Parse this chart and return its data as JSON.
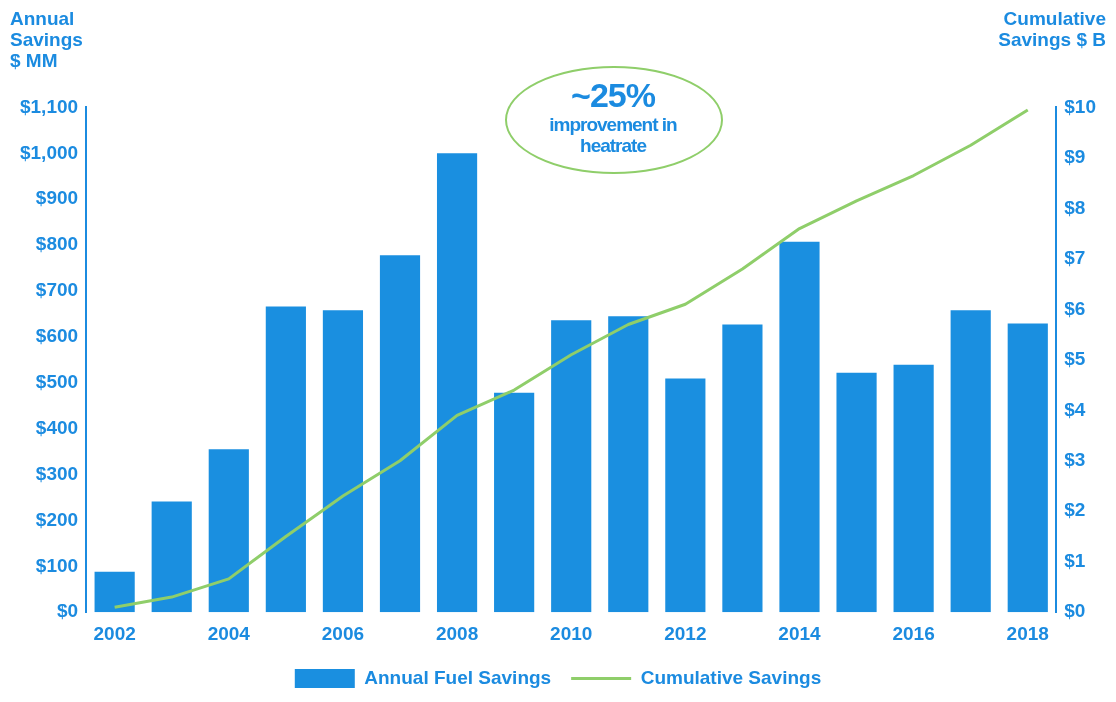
{
  "chart_data": {
    "type": "bar",
    "ylabel": "Annual Savings $ MM",
    "y2label": "Cumulative Savings $ B",
    "categories": [
      "2002",
      null,
      "2004",
      null,
      "2006",
      null,
      "2008",
      null,
      "2010",
      null,
      "2012",
      null,
      "2014",
      null,
      "2016",
      null,
      "2018"
    ],
    "series": [
      {
        "name": "Annual Fuel Savings",
        "color": "#1a8fe0",
        "values": [
          88,
          241,
          355,
          666,
          658,
          778,
          1000,
          478,
          636,
          645,
          509,
          627,
          807,
          522,
          539,
          658,
          629
        ]
      },
      {
        "name": "Cumulative Savings",
        "type": "line",
        "axis": "y2",
        "color": "#8fce6a",
        "values": [
          0.1,
          0.3,
          0.66,
          1.5,
          2.3,
          3.0,
          3.9,
          4.4,
          5.1,
          5.7,
          6.1,
          6.8,
          7.6,
          8.15,
          8.65,
          9.25,
          9.95
        ]
      }
    ],
    "ylim": [
      0,
      1100
    ],
    "yticks": [
      {
        "value": 0,
        "label": "$0"
      },
      {
        "value": 100,
        "label": "$100"
      },
      {
        "value": 200,
        "label": "$200"
      },
      {
        "value": 300,
        "label": "$300"
      },
      {
        "value": 400,
        "label": "$400"
      },
      {
        "value": 500,
        "label": "$500"
      },
      {
        "value": 600,
        "label": "$600"
      },
      {
        "value": 700,
        "label": "$700"
      },
      {
        "value": 800,
        "label": "$800"
      },
      {
        "value": 900,
        "label": "$900"
      },
      {
        "value": 1000,
        "label": "$1,000"
      },
      {
        "value": 1100,
        "label": "$1,100"
      }
    ],
    "y2lim": [
      0,
      10
    ],
    "y2ticks": [
      {
        "value": 0,
        "label": "$0"
      },
      {
        "value": 1,
        "label": "$1"
      },
      {
        "value": 2,
        "label": "$2"
      },
      {
        "value": 3,
        "label": "$3"
      },
      {
        "value": 4,
        "label": "$4"
      },
      {
        "value": 5,
        "label": "$5"
      },
      {
        "value": 6,
        "label": "$6"
      },
      {
        "value": 7,
        "label": "$7"
      },
      {
        "value": 8,
        "label": "$8"
      },
      {
        "value": 9,
        "label": "$9"
      },
      {
        "value": 10,
        "label": "$10"
      }
    ],
    "annotations": [
      "~25%",
      "improvement in heatrate"
    ],
    "legend": "bottom",
    "grid": false,
    "marker": "none"
  }
}
